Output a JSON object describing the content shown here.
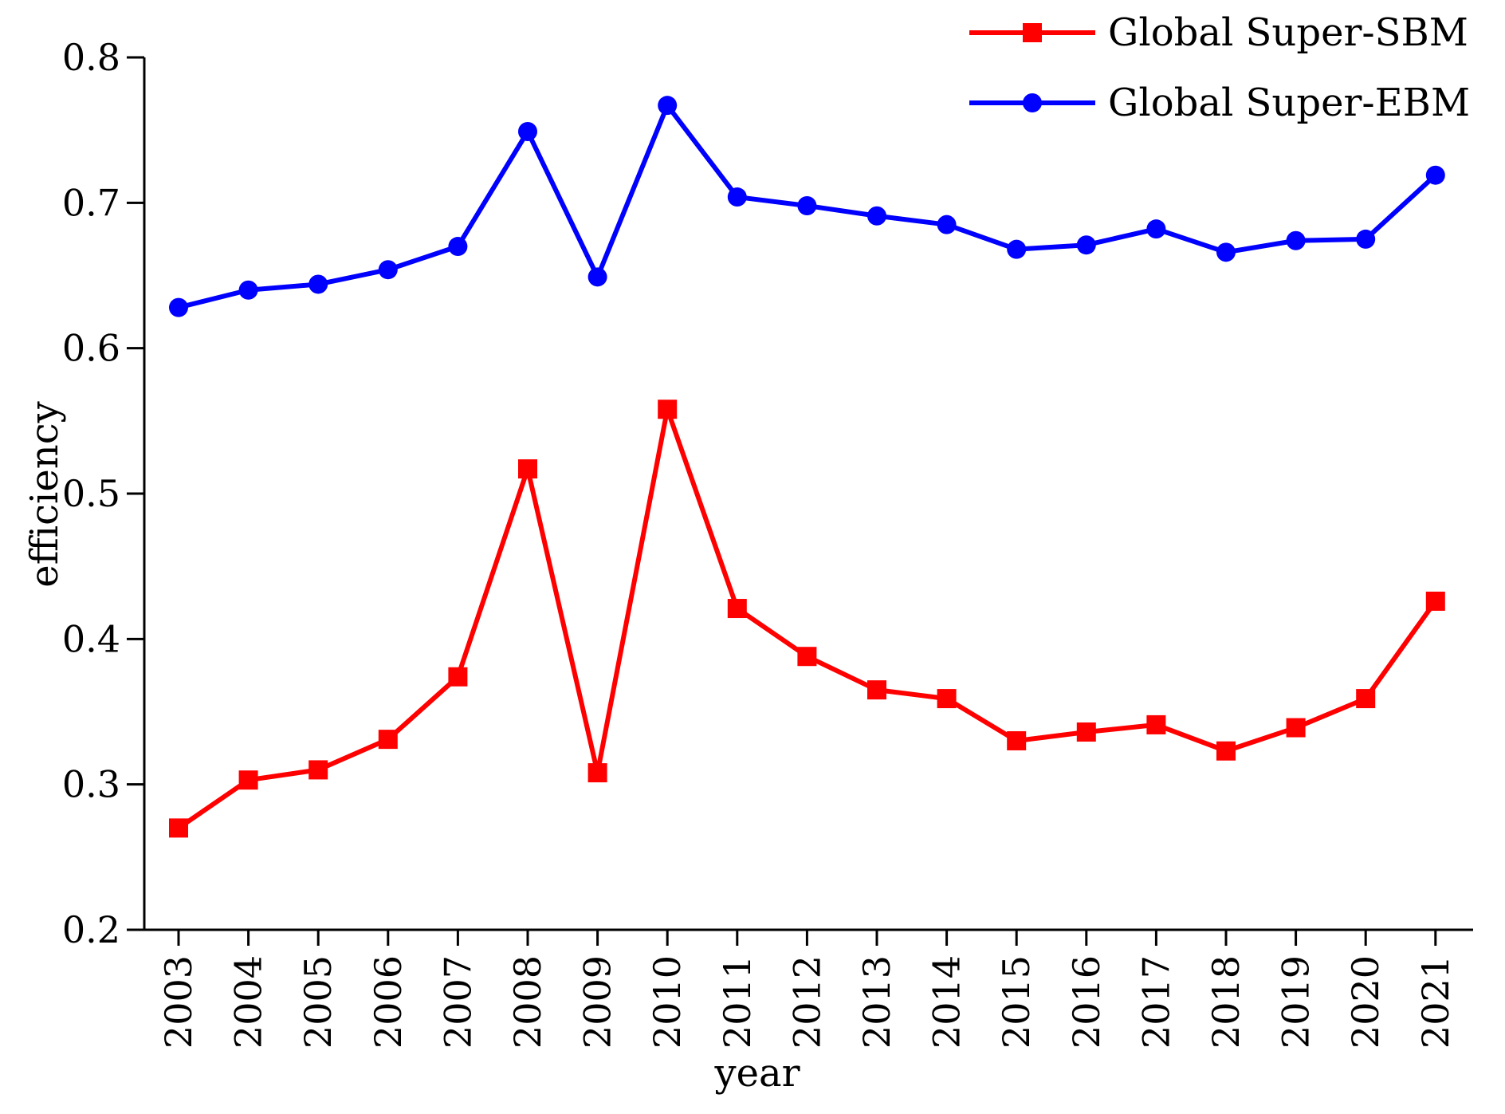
{
  "chart_data": {
    "type": "line",
    "title": "",
    "xlabel": "year",
    "ylabel": "efficiency",
    "ylim": [
      0.2,
      0.8
    ],
    "yticks": [
      "0.2",
      "0.3",
      "0.4",
      "0.5",
      "0.6",
      "0.7",
      "0.8"
    ],
    "categories": [
      "2003",
      "2004",
      "2005",
      "2006",
      "2007",
      "2008",
      "2009",
      "2010",
      "2011",
      "2012",
      "2013",
      "2014",
      "2015",
      "2016",
      "2017",
      "2018",
      "2019",
      "2020",
      "2021"
    ],
    "legend_position": "top-right",
    "series": [
      {
        "name": "Global Super-SBM",
        "color": "#ff0000",
        "marker": "square",
        "values": [
          0.27,
          0.303,
          0.31,
          0.331,
          0.374,
          0.517,
          0.308,
          0.558,
          0.421,
          0.388,
          0.365,
          0.359,
          0.33,
          0.336,
          0.341,
          0.323,
          0.339,
          0.359,
          0.426
        ]
      },
      {
        "name": "Global Super-EBM",
        "color": "#0000ff",
        "marker": "circle",
        "values": [
          0.628,
          0.64,
          0.644,
          0.654,
          0.67,
          0.749,
          0.649,
          0.767,
          0.704,
          0.698,
          0.691,
          0.685,
          0.668,
          0.671,
          0.682,
          0.666,
          0.674,
          0.675,
          0.719
        ]
      }
    ]
  }
}
